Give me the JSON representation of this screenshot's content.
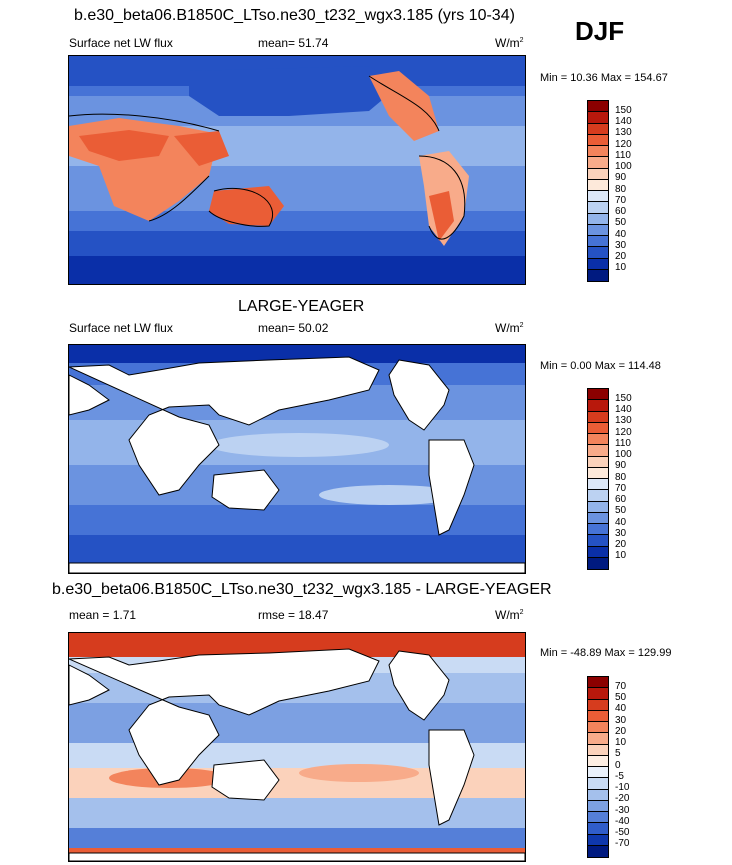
{
  "season": "DJF",
  "panels": [
    {
      "title": "b.e30_beta06.B1850C_LTso.ne30_t232_wgx3.185 (yrs 10-34)",
      "left_label": "Surface net LW flux",
      "mid_label": "mean=  51.74",
      "unit": "W/m",
      "unit_sup": "2",
      "minmax": "Min =  10.36 Max = 154.67",
      "land": "filled",
      "cbar_labels": [
        "150",
        "140",
        "130",
        "120",
        "110",
        "100",
        "90",
        "80",
        "70",
        "60",
        "50",
        "40",
        "30",
        "20",
        "10"
      ]
    },
    {
      "title": "LARGE-YEAGER",
      "left_label": "Surface net LW flux",
      "mid_label": "mean=  50.02",
      "unit": "W/m",
      "unit_sup": "2",
      "minmax": "Min =   0.00 Max = 114.48",
      "land": "white",
      "cbar_labels": [
        "150",
        "140",
        "130",
        "120",
        "110",
        "100",
        "90",
        "80",
        "70",
        "60",
        "50",
        "40",
        "30",
        "20",
        "10"
      ]
    },
    {
      "title": "b.e30_beta06.B1850C_LTso.ne30_t232_wgx3.185 - LARGE-YEAGER",
      "left_label": "mean =   1.71",
      "mid_label": "rmse =  18.47",
      "unit": "W/m",
      "unit_sup": "2",
      "minmax": "Min = -48.89 Max = 129.99",
      "land": "white",
      "cbar_labels": [
        "70",
        "50",
        "40",
        "30",
        "20",
        "10",
        "5",
        "0",
        "-5",
        "-10",
        "-20",
        "-30",
        "-40",
        "-50",
        "-70"
      ]
    }
  ],
  "colors": {
    "abs_scale": [
      "#8b0000",
      "#b8180c",
      "#d63c1e",
      "#ea5d36",
      "#f3845c",
      "#f8ab8a",
      "#fbd2bb",
      "#fde9da",
      "#dde8f8",
      "#bcd2f2",
      "#93b4ea",
      "#6b93e0",
      "#4673d6",
      "#2552c4",
      "#0a2fa8",
      "#001a80"
    ],
    "diff_scale": [
      "#8b0000",
      "#b8180c",
      "#d63c1e",
      "#ea5d36",
      "#f3845c",
      "#f8ab8a",
      "#fbd2bb",
      "#fdeee3",
      "#eaf1fb",
      "#c9dbf4",
      "#a4c0ec",
      "#7ca0e2",
      "#557fd8",
      "#305dca",
      "#0f38ad",
      "#001a80"
    ],
    "land_white": "#ffffff",
    "coast": "#000000"
  }
}
